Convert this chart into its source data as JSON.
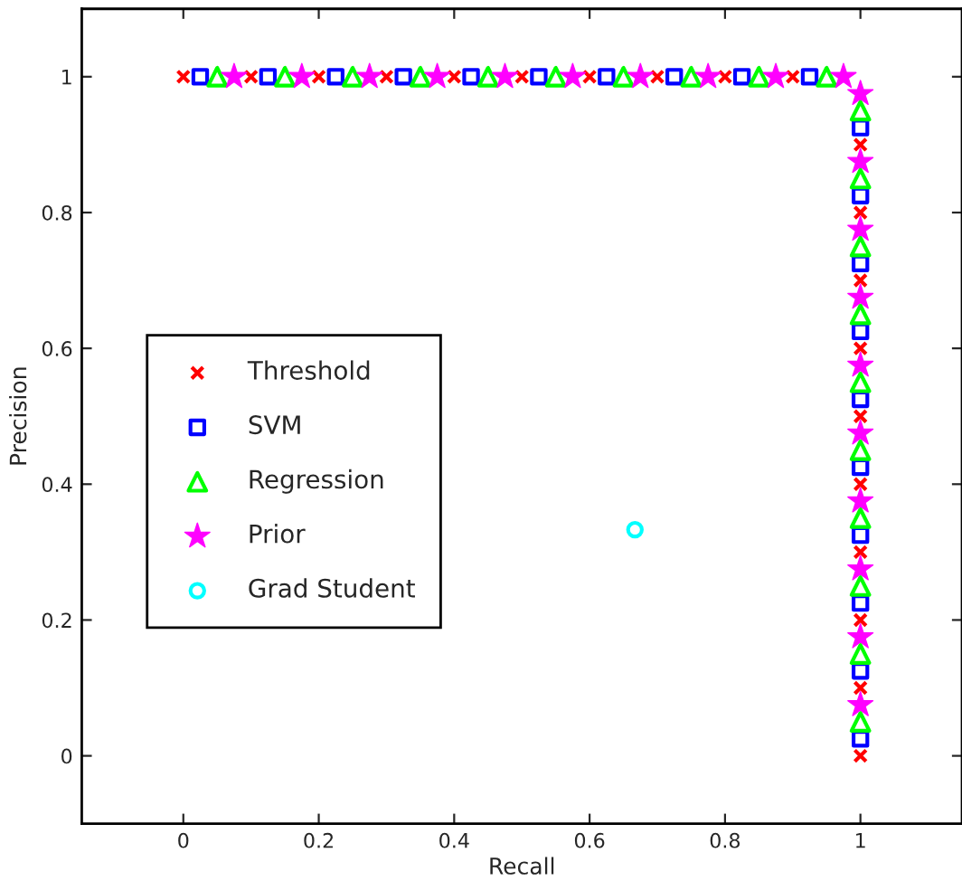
{
  "chart_data": {
    "type": "scatter",
    "xlabel": "Recall",
    "ylabel": "Precision",
    "xlim": [
      -0.15,
      1.15
    ],
    "ylim": [
      -0.1,
      1.1
    ],
    "xticks": [
      0,
      0.2,
      0.4,
      0.6,
      0.8,
      1
    ],
    "yticks": [
      0,
      0.2,
      0.4,
      0.6,
      0.8,
      1
    ],
    "grid": false,
    "legend": "left",
    "series": [
      {
        "name": "Threshold",
        "color": "#ff0000",
        "marker": "cross",
        "x": [
          0,
          0.1,
          0.2,
          0.3,
          0.4,
          0.5,
          0.6,
          0.7,
          0.8,
          0.9,
          1,
          1,
          1,
          1,
          1,
          1,
          1,
          1,
          1,
          1
        ],
        "values": [
          1,
          1,
          1,
          1,
          1,
          1,
          1,
          1,
          1,
          1,
          0.9,
          0.8,
          0.7,
          0.6,
          0.5,
          0.4,
          0.3,
          0.2,
          0.1,
          0
        ]
      },
      {
        "name": "SVM",
        "color": "#0000ff",
        "marker": "square",
        "x": [
          0.025,
          0.125,
          0.225,
          0.325,
          0.425,
          0.525,
          0.625,
          0.725,
          0.825,
          0.925,
          1,
          1,
          1,
          1,
          1,
          1,
          1,
          1,
          1,
          1
        ],
        "values": [
          1,
          1,
          1,
          1,
          1,
          1,
          1,
          1,
          1,
          1,
          0.925,
          0.825,
          0.725,
          0.625,
          0.525,
          0.425,
          0.325,
          0.225,
          0.125,
          0.025
        ]
      },
      {
        "name": "Regression",
        "color": "#00ff00",
        "marker": "triangle",
        "x": [
          0.05,
          0.15,
          0.25,
          0.35,
          0.45,
          0.55,
          0.65,
          0.75,
          0.85,
          0.95,
          1,
          1,
          1,
          1,
          1,
          1,
          1,
          1,
          1,
          1
        ],
        "values": [
          1,
          1,
          1,
          1,
          1,
          1,
          1,
          1,
          1,
          1,
          0.95,
          0.85,
          0.75,
          0.65,
          0.55,
          0.45,
          0.35,
          0.25,
          0.15,
          0.05
        ]
      },
      {
        "name": "Prior",
        "color": "#ff00ff",
        "marker": "star",
        "x": [
          0.075,
          0.175,
          0.275,
          0.375,
          0.475,
          0.575,
          0.675,
          0.775,
          0.875,
          0.975,
          1,
          1,
          1,
          1,
          1,
          1,
          1,
          1,
          1,
          1
        ],
        "values": [
          1,
          1,
          1,
          1,
          1,
          1,
          1,
          1,
          1,
          1,
          0.975,
          0.875,
          0.775,
          0.675,
          0.575,
          0.475,
          0.375,
          0.275,
          0.175,
          0.075
        ]
      },
      {
        "name": "Grad Student",
        "color": "#00ffff",
        "marker": "circle",
        "x": [
          0.667
        ],
        "values": [
          0.333
        ]
      }
    ]
  }
}
